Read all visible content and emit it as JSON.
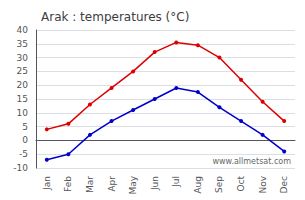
{
  "chart_data": {
    "type": "line",
    "title": "Arak : temperatures (°C)",
    "categories": [
      "Jan",
      "Feb",
      "Mar",
      "Apr",
      "May",
      "Jun",
      "Jul",
      "Aug",
      "Sep",
      "Oct",
      "Nov",
      "Dec"
    ],
    "series": [
      {
        "color": "#dd0000",
        "values": [
          4,
          6,
          13,
          19,
          25,
          32,
          35.5,
          34.5,
          30,
          22,
          14,
          7
        ]
      },
      {
        "color": "#0000cc",
        "values": [
          -7,
          -5,
          2,
          7,
          11,
          15,
          19,
          17.5,
          12,
          7,
          2,
          -4
        ]
      }
    ],
    "ylim": [
      -10,
      40
    ],
    "yticks": [
      -10,
      -5,
      0,
      5,
      10,
      15,
      20,
      25,
      30,
      35,
      40
    ],
    "grid": true,
    "marker": "circle",
    "annotation": "www.allmetsat.com"
  }
}
